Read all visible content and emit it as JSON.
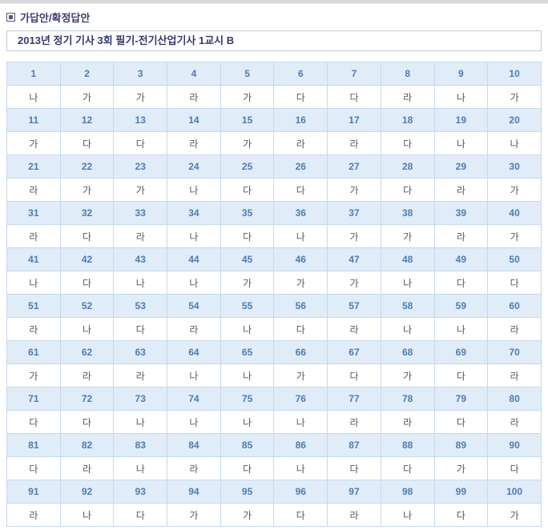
{
  "section_header": {
    "icon": "square-bullet-icon",
    "title": "가답안/확정답안"
  },
  "exam": {
    "title": "2013년 정기 기사 3회 필기-전기산업기사 1교시 B"
  },
  "colors": {
    "number_row_bg": "#e0ecf8",
    "number_text": "#4d7cb2",
    "answer_text": "#585858",
    "cell_border": "#c6d8ec",
    "table_outer_border": "#aec0d6",
    "header_text": "#393e6d",
    "title_text": "#343a6b",
    "top_strip": "#d8d8d8"
  },
  "answer_table": {
    "choice_labels": [
      "가",
      "나",
      "다",
      "라"
    ],
    "rows": [
      {
        "numbers": [
          "1",
          "2",
          "3",
          "4",
          "5",
          "6",
          "7",
          "8",
          "9",
          "10"
        ],
        "answers": [
          "나",
          "가",
          "가",
          "라",
          "가",
          "다",
          "다",
          "라",
          "나",
          "가"
        ]
      },
      {
        "numbers": [
          "11",
          "12",
          "13",
          "14",
          "15",
          "16",
          "17",
          "18",
          "19",
          "20"
        ],
        "answers": [
          "가",
          "다",
          "다",
          "라",
          "가",
          "라",
          "라",
          "다",
          "나",
          "나"
        ]
      },
      {
        "numbers": [
          "21",
          "22",
          "23",
          "24",
          "25",
          "26",
          "27",
          "28",
          "29",
          "30"
        ],
        "answers": [
          "라",
          "가",
          "가",
          "나",
          "다",
          "다",
          "가",
          "다",
          "라",
          "가"
        ]
      },
      {
        "numbers": [
          "31",
          "32",
          "33",
          "34",
          "35",
          "36",
          "37",
          "38",
          "39",
          "40"
        ],
        "answers": [
          "라",
          "다",
          "라",
          "나",
          "다",
          "나",
          "가",
          "가",
          "라",
          "가"
        ]
      },
      {
        "numbers": [
          "41",
          "42",
          "43",
          "44",
          "45",
          "46",
          "47",
          "48",
          "49",
          "50"
        ],
        "answers": [
          "나",
          "다",
          "나",
          "나",
          "가",
          "가",
          "가",
          "나",
          "다",
          "다"
        ]
      },
      {
        "numbers": [
          "51",
          "52",
          "53",
          "54",
          "55",
          "56",
          "57",
          "58",
          "59",
          "60"
        ],
        "answers": [
          "라",
          "나",
          "다",
          "라",
          "나",
          "다",
          "라",
          "나",
          "나",
          "라"
        ]
      },
      {
        "numbers": [
          "61",
          "62",
          "63",
          "64",
          "65",
          "66",
          "67",
          "68",
          "69",
          "70"
        ],
        "answers": [
          "가",
          "라",
          "라",
          "나",
          "나",
          "가",
          "다",
          "가",
          "다",
          "라"
        ]
      },
      {
        "numbers": [
          "71",
          "72",
          "73",
          "74",
          "75",
          "76",
          "77",
          "78",
          "79",
          "80"
        ],
        "answers": [
          "다",
          "다",
          "나",
          "나",
          "나",
          "나",
          "라",
          "라",
          "다",
          "라"
        ]
      },
      {
        "numbers": [
          "81",
          "82",
          "83",
          "84",
          "85",
          "86",
          "87",
          "88",
          "89",
          "90"
        ],
        "answers": [
          "다",
          "라",
          "나",
          "라",
          "다",
          "나",
          "다",
          "다",
          "가",
          "다"
        ]
      },
      {
        "numbers": [
          "91",
          "92",
          "93",
          "94",
          "95",
          "96",
          "97",
          "98",
          "99",
          "100"
        ],
        "answers": [
          "라",
          "나",
          "다",
          "가",
          "가",
          "다",
          "라",
          "나",
          "다",
          "가"
        ]
      }
    ]
  }
}
